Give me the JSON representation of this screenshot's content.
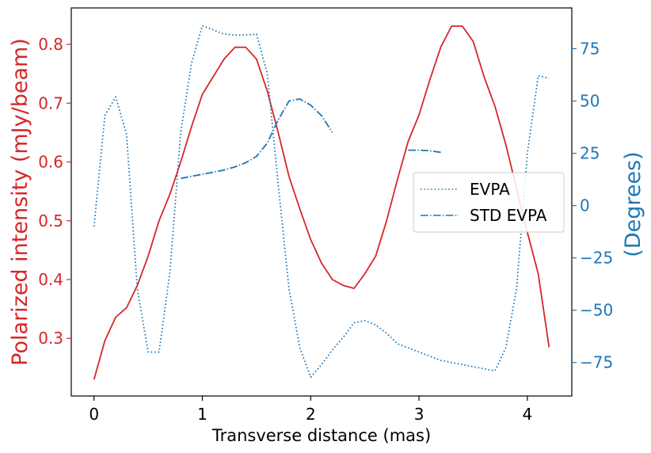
{
  "chart_data": {
    "type": "line",
    "xlabel": "Transverse distance (mas)",
    "ylabel_left": "Polarized intensity (mJy/beam)",
    "ylabel_right": "(Degrees)",
    "xlim": [
      -0.21,
      4.41
    ],
    "ylim_left": [
      0.202,
      0.862
    ],
    "ylim_right": [
      -91.0,
      94.5
    ],
    "x_ticks": [
      0,
      1,
      2,
      3,
      4
    ],
    "y_left_ticks": [
      0.3,
      0.4,
      0.5,
      0.6,
      0.7,
      0.8
    ],
    "y_right_ticks": [
      -75,
      -50,
      -25,
      0,
      25,
      50,
      75
    ],
    "x_tick_labels": [
      "0",
      "1",
      "2",
      "3",
      "4"
    ],
    "y_left_tick_labels": [
      "0.3",
      "0.4",
      "0.5",
      "0.6",
      "0.7",
      "0.8"
    ],
    "y_right_tick_labels": [
      "−75",
      "−50",
      "−25",
      "0",
      "25",
      "50",
      "75"
    ],
    "grid": false,
    "legend_position": "center-right",
    "colors": {
      "left": "#d62728",
      "right": "#1f77b4"
    },
    "series": [
      {
        "axis": "left",
        "style": "solid",
        "color": "#d62728",
        "x": [
          0,
          0.1,
          0.2,
          0.3,
          0.4,
          0.5,
          0.6,
          0.7,
          0.8,
          0.9,
          1.0,
          1.1,
          1.2,
          1.3,
          1.4,
          1.5,
          1.6,
          1.7,
          1.8,
          1.9,
          2.0,
          2.1,
          2.2,
          2.3,
          2.4,
          2.5,
          2.6,
          2.7,
          2.8,
          2.9,
          3.0,
          3.1,
          3.2,
          3.3,
          3.4,
          3.5,
          3.6,
          3.7,
          3.8,
          3.9,
          4.0,
          4.1,
          4.2
        ],
        "y": [
          0.23,
          0.296,
          0.336,
          0.352,
          0.39,
          0.44,
          0.5,
          0.545,
          0.6,
          0.66,
          0.715,
          0.745,
          0.775,
          0.795,
          0.795,
          0.775,
          0.72,
          0.65,
          0.575,
          0.52,
          0.468,
          0.428,
          0.4,
          0.39,
          0.385,
          0.41,
          0.44,
          0.5,
          0.57,
          0.635,
          0.68,
          0.74,
          0.795,
          0.831,
          0.831,
          0.805,
          0.745,
          0.695,
          0.63,
          0.555,
          0.48,
          0.41,
          0.285
        ]
      },
      {
        "name": "EVPA",
        "axis": "right",
        "style": "dotted",
        "color": "#1f77b4",
        "x": [
          0,
          0.1,
          0.2,
          0.3,
          0.4,
          0.5,
          0.55,
          0.6,
          0.7,
          0.8,
          0.9,
          1.0,
          1.1,
          1.2,
          1.3,
          1.4,
          1.5,
          1.6,
          1.7,
          1.8,
          1.9,
          2.0,
          2.1,
          2.2,
          2.3,
          2.4,
          2.5,
          2.6,
          2.7,
          2.8,
          2.9,
          3.0,
          3.1,
          3.2,
          3.3,
          3.4,
          3.5,
          3.6,
          3.7,
          3.8,
          3.9,
          4.0,
          4.1,
          4.2
        ],
        "y": [
          -10,
          43,
          52,
          34,
          -40,
          -70,
          -70,
          -70,
          -32,
          35,
          68,
          86,
          84,
          82,
          81.5,
          81.5,
          82,
          63,
          10,
          -40,
          -68,
          -82,
          -76,
          -69,
          -63,
          -56,
          -55,
          -57,
          -61,
          -66,
          -68,
          -70,
          -72,
          -74,
          -75,
          -76,
          -77,
          -78,
          -79,
          -68,
          -40,
          25,
          62,
          61
        ]
      },
      {
        "name": "STD EVPA",
        "axis": "right",
        "style": "dashdot",
        "color": "#1f77b4",
        "segments": [
          {
            "x": [
              0.8,
              0.9,
              1.0,
              1.1,
              1.2,
              1.3,
              1.4,
              1.5,
              1.6,
              1.7,
              1.8,
              1.9,
              2.0,
              2.1,
              2.2
            ],
            "y": [
              13,
              14,
              15,
              16,
              17,
              18.5,
              20.5,
              23.5,
              30,
              41,
              50,
              51,
              48,
              43,
              35
            ]
          },
          {
            "x": [
              2.9,
              3.0,
              3.1,
              3.2
            ],
            "y": [
              26.5,
              26.5,
              26.2,
              25.5
            ]
          }
        ]
      }
    ]
  }
}
